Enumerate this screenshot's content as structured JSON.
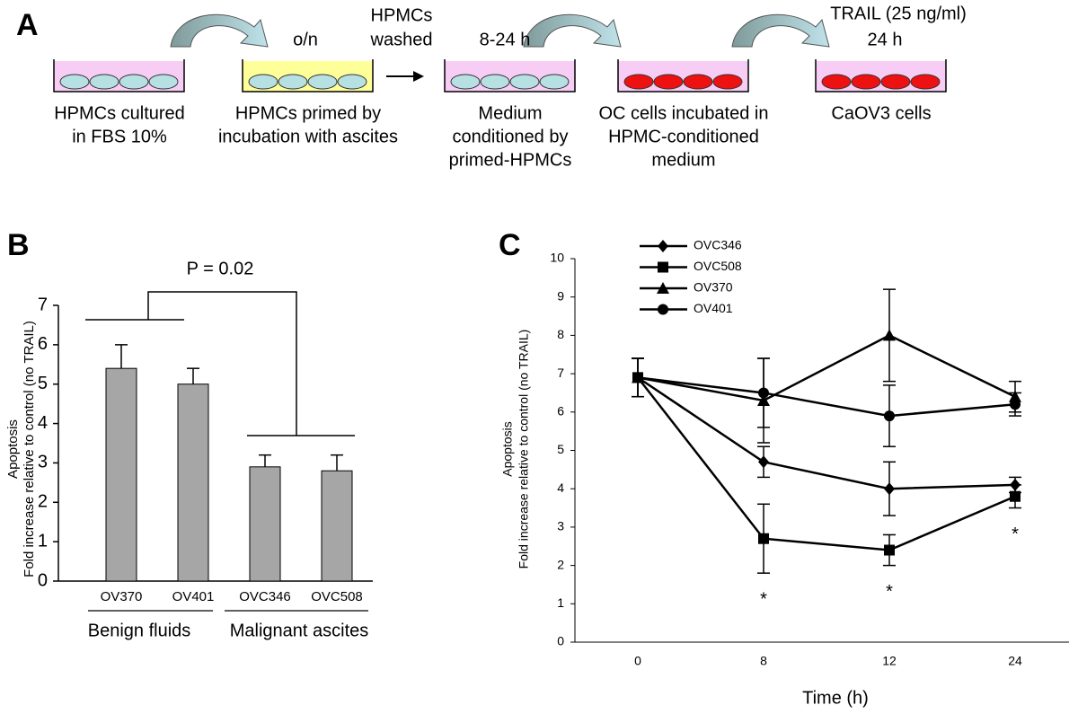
{
  "panel_a": {
    "label": "A",
    "notes": {
      "overnight": "o/n",
      "washed": [
        "HPMCs",
        "washed"
      ],
      "incubation": "8-24 h",
      "trail": "TRAIL (25 ng/ml)",
      "treatment": "24 h"
    },
    "steps": [
      {
        "label": [
          "HPMCs cultured",
          "in FBS 10%"
        ]
      },
      {
        "label": [
          "HPMCs primed by",
          "incubation with ascites"
        ]
      },
      {
        "label": [
          "Medium",
          "conditioned by",
          "primed-HPMCs"
        ]
      },
      {
        "label": [
          "OC cells incubated in",
          "HPMC-conditioned",
          "medium"
        ]
      },
      {
        "label": [
          "CaOV3 cells"
        ]
      }
    ]
  },
  "chart_data": [
    {
      "type": "bar",
      "panel": "B",
      "ylabel": [
        "Apoptosis",
        "Fold increase relative to control (no TRAIL)"
      ],
      "categories": [
        "OV370",
        "OV401",
        "OVC346",
        "OVC508"
      ],
      "values": [
        5.4,
        5.0,
        2.9,
        2.8
      ],
      "errors": [
        0.6,
        0.4,
        0.3,
        0.4
      ],
      "color": "#a6a6a6",
      "groups": [
        "Benign fluids",
        "Malignant ascites"
      ],
      "annotation": "P = 0.02",
      "ylim": [
        0,
        7
      ],
      "yticks": [
        0,
        1,
        2,
        3,
        4,
        5,
        6,
        7
      ]
    },
    {
      "type": "line",
      "panel": "C",
      "ylabel": [
        "Apoptosis",
        "Fold increase relative to control (no TRAIL)"
      ],
      "xlabel": "Time (h)",
      "categories": [
        "0",
        "8",
        "12",
        "24"
      ],
      "ylim": [
        0,
        10
      ],
      "yticks": [
        0,
        1,
        2,
        3,
        4,
        5,
        6,
        7,
        8,
        9,
        10
      ],
      "legend": "top-left",
      "series": [
        {
          "name": "OVC346",
          "color": "#000000",
          "marker": "diamond",
          "values": [
            6.9,
            4.7,
            4.0,
            4.1
          ],
          "errors": [
            0.5,
            0.4,
            0.7,
            0.2
          ]
        },
        {
          "name": "OVC508",
          "color": "#000000",
          "marker": "square",
          "values": [
            6.9,
            2.7,
            2.4,
            3.8
          ],
          "errors": [
            0.5,
            0.9,
            0.4,
            0.3
          ]
        },
        {
          "name": "OV370",
          "color": "#000000",
          "marker": "triangle",
          "values": [
            6.9,
            6.3,
            8.0,
            6.4
          ],
          "errors": [
            0.5,
            1.1,
            1.2,
            0.4
          ]
        },
        {
          "name": "OV401",
          "color": "#000000",
          "marker": "circle",
          "values": [
            6.9,
            6.5,
            5.9,
            6.2
          ],
          "errors": [
            0.5,
            0.9,
            0.8,
            0.3
          ]
        }
      ],
      "annotations": [
        {
          "text": "*",
          "at": "8"
        },
        {
          "text": "*",
          "at": "12"
        },
        {
          "text": "*",
          "at": "24"
        }
      ]
    }
  ]
}
